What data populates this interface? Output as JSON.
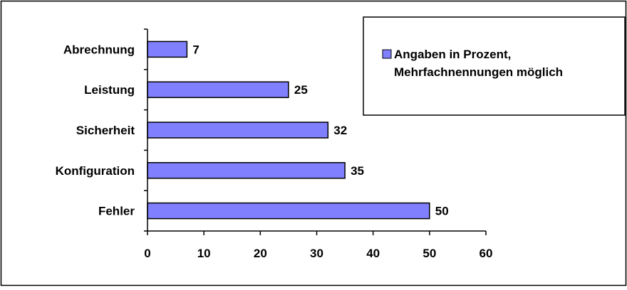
{
  "chart_data": {
    "type": "bar",
    "orientation": "horizontal",
    "categories": [
      "Abrechnung",
      "Leistung",
      "Sicherheit",
      "Konfiguration",
      "Fehler"
    ],
    "series": [
      {
        "name": "Angaben in Prozent, Mehrfachnennungen möglich",
        "values": [
          7,
          25,
          32,
          35,
          50
        ],
        "color": "#8080ff"
      }
    ],
    "xlim": [
      0,
      60
    ],
    "x_ticks": [
      "0",
      "10",
      "20",
      "30",
      "40",
      "50",
      "60"
    ],
    "grid": false,
    "legend_position": "top-right",
    "legend_lines": [
      "Angaben in Prozent,",
      "Mehrfachnennungen möglich"
    ]
  }
}
